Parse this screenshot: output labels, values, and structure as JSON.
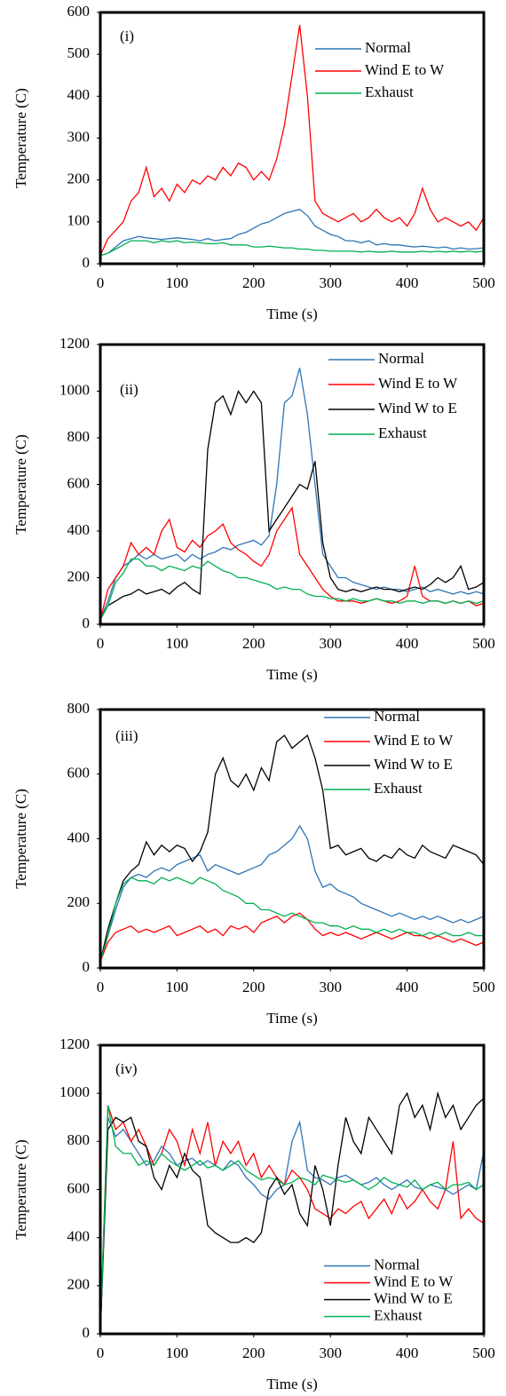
{
  "chart_data": [
    {
      "type": "line",
      "label": "(i)",
      "ylabel": "Temperature (C)",
      "xlabel": "Time (s)",
      "legend": "upper right",
      "xlim": [
        0,
        500
      ],
      "xticks": [
        0,
        100,
        200,
        300,
        400,
        500
      ],
      "ylim": [
        0,
        600
      ],
      "yticks": [
        0,
        100,
        200,
        300,
        400,
        500,
        600
      ],
      "x": [
        0,
        10,
        20,
        30,
        40,
        50,
        60,
        70,
        80,
        90,
        100,
        110,
        120,
        130,
        140,
        150,
        160,
        170,
        180,
        190,
        200,
        210,
        220,
        230,
        240,
        250,
        260,
        270,
        280,
        290,
        300,
        310,
        320,
        330,
        340,
        350,
        360,
        370,
        380,
        390,
        400,
        410,
        420,
        430,
        440,
        450,
        460,
        470,
        480,
        490,
        500
      ],
      "series": [
        {
          "name": "Normal",
          "color": "#2e75b6",
          "values": [
            20,
            25,
            40,
            55,
            60,
            65,
            62,
            60,
            58,
            60,
            62,
            60,
            58,
            55,
            60,
            55,
            58,
            60,
            70,
            75,
            85,
            95,
            100,
            110,
            120,
            125,
            130,
            115,
            90,
            80,
            70,
            65,
            55,
            55,
            50,
            55,
            45,
            48,
            45,
            45,
            42,
            40,
            42,
            40,
            38,
            40,
            35,
            38,
            35,
            36,
            38
          ]
        },
        {
          "name": "Wind E to W",
          "color": "#ff0000",
          "values": [
            20,
            60,
            80,
            100,
            150,
            170,
            230,
            160,
            180,
            150,
            190,
            170,
            200,
            190,
            210,
            200,
            230,
            210,
            240,
            230,
            200,
            220,
            200,
            250,
            330,
            450,
            570,
            400,
            150,
            120,
            110,
            100,
            110,
            120,
            100,
            110,
            130,
            110,
            100,
            110,
            90,
            120,
            180,
            130,
            100,
            110,
            100,
            90,
            100,
            80,
            110
          ]
        },
        {
          "name": "Exhaust",
          "color": "#00b050",
          "values": [
            20,
            25,
            35,
            45,
            55,
            55,
            55,
            50,
            55,
            52,
            55,
            50,
            52,
            50,
            48,
            48,
            50,
            45,
            45,
            45,
            40,
            40,
            42,
            40,
            38,
            38,
            35,
            35,
            32,
            32,
            30,
            30,
            30,
            30,
            28,
            30,
            28,
            28,
            30,
            28,
            28,
            28,
            30,
            28,
            30,
            28,
            30,
            28,
            30,
            28,
            30
          ]
        }
      ]
    },
    {
      "type": "line",
      "label": "(ii)",
      "ylabel": "Temperature (C)",
      "xlabel": "Time (s)",
      "legend": "upper right",
      "xlim": [
        0,
        500
      ],
      "xticks": [
        0,
        100,
        200,
        300,
        400,
        500
      ],
      "ylim": [
        0,
        1200
      ],
      "yticks": [
        0,
        200,
        400,
        600,
        800,
        1000,
        1200
      ],
      "x": [
        0,
        10,
        20,
        30,
        40,
        50,
        60,
        70,
        80,
        90,
        100,
        110,
        120,
        130,
        140,
        150,
        160,
        170,
        180,
        190,
        200,
        210,
        220,
        230,
        240,
        250,
        260,
        270,
        280,
        290,
        300,
        310,
        320,
        330,
        340,
        350,
        360,
        370,
        380,
        390,
        400,
        410,
        420,
        430,
        440,
        450,
        460,
        470,
        480,
        490,
        500
      ],
      "series": [
        {
          "name": "Normal",
          "color": "#2e75b6",
          "values": [
            20,
            100,
            200,
            250,
            270,
            300,
            280,
            300,
            280,
            290,
            300,
            270,
            300,
            280,
            300,
            310,
            330,
            320,
            340,
            350,
            360,
            340,
            380,
            600,
            950,
            980,
            1100,
            900,
            600,
            300,
            250,
            200,
            200,
            180,
            170,
            160,
            150,
            160,
            150,
            150,
            140,
            150,
            160,
            140,
            150,
            140,
            130,
            140,
            130,
            140,
            130
          ]
        },
        {
          "name": "Wind E to W",
          "color": "#ff0000",
          "values": [
            20,
            150,
            200,
            250,
            350,
            300,
            330,
            300,
            400,
            450,
            330,
            310,
            360,
            330,
            380,
            400,
            430,
            350,
            320,
            300,
            270,
            250,
            300,
            400,
            450,
            500,
            300,
            250,
            200,
            150,
            120,
            100,
            100,
            100,
            90,
            100,
            110,
            100,
            90,
            100,
            120,
            250,
            120,
            100,
            100,
            90,
            100,
            90,
            100,
            80,
            90
          ]
        },
        {
          "name": "Wind W to E",
          "color": "#000000",
          "values": [
            20,
            80,
            100,
            120,
            130,
            150,
            130,
            140,
            150,
            130,
            160,
            180,
            150,
            130,
            750,
            950,
            980,
            900,
            1000,
            950,
            1000,
            950,
            400,
            450,
            500,
            550,
            600,
            580,
            700,
            350,
            200,
            150,
            140,
            150,
            140,
            150,
            160,
            150,
            150,
            140,
            150,
            160,
            150,
            170,
            200,
            180,
            200,
            250,
            150,
            160,
            180
          ]
        },
        {
          "name": "Exhaust",
          "color": "#00b050",
          "values": [
            20,
            80,
            180,
            220,
            280,
            280,
            250,
            250,
            230,
            250,
            240,
            230,
            250,
            240,
            270,
            250,
            230,
            220,
            200,
            200,
            190,
            180,
            170,
            150,
            160,
            150,
            150,
            130,
            120,
            120,
            110,
            110,
            100,
            110,
            100,
            100,
            110,
            100,
            100,
            90,
            100,
            100,
            90,
            100,
            100,
            90,
            100,
            90,
            100,
            90,
            100
          ]
        }
      ]
    },
    {
      "type": "line",
      "label": "(iii)",
      "ylabel": "Temperature (C)",
      "xlabel": "Time (s)",
      "legend": "upper right",
      "xlim": [
        0,
        500
      ],
      "xticks": [
        0,
        100,
        200,
        300,
        400,
        500
      ],
      "ylim": [
        0,
        800
      ],
      "yticks": [
        0,
        200,
        400,
        600,
        800
      ],
      "x": [
        0,
        10,
        20,
        30,
        40,
        50,
        60,
        70,
        80,
        90,
        100,
        110,
        120,
        130,
        140,
        150,
        160,
        170,
        180,
        190,
        200,
        210,
        220,
        230,
        240,
        250,
        260,
        270,
        280,
        290,
        300,
        310,
        320,
        330,
        340,
        350,
        360,
        370,
        380,
        390,
        400,
        410,
        420,
        430,
        440,
        450,
        460,
        470,
        480,
        490,
        500
      ],
      "series": [
        {
          "name": "Normal",
          "color": "#2e75b6",
          "values": [
            20,
            100,
            180,
            250,
            280,
            290,
            280,
            300,
            310,
            300,
            320,
            330,
            340,
            350,
            300,
            320,
            310,
            300,
            290,
            300,
            310,
            320,
            350,
            360,
            380,
            400,
            440,
            400,
            300,
            250,
            260,
            240,
            230,
            220,
            200,
            190,
            180,
            170,
            160,
            170,
            160,
            150,
            160,
            150,
            160,
            150,
            140,
            150,
            140,
            150,
            160
          ]
        },
        {
          "name": "Wind E to W",
          "color": "#ff0000",
          "values": [
            20,
            80,
            110,
            120,
            130,
            110,
            120,
            110,
            120,
            130,
            100,
            110,
            120,
            130,
            110,
            120,
            100,
            130,
            120,
            130,
            110,
            140,
            150,
            160,
            140,
            160,
            170,
            150,
            120,
            100,
            110,
            100,
            110,
            100,
            90,
            100,
            110,
            100,
            90,
            100,
            110,
            100,
            100,
            90,
            100,
            90,
            80,
            90,
            80,
            70,
            80
          ]
        },
        {
          "name": "Wind W to E",
          "color": "#000000",
          "values": [
            20,
            120,
            200,
            270,
            300,
            320,
            390,
            350,
            380,
            360,
            380,
            370,
            330,
            360,
            420,
            600,
            650,
            580,
            560,
            600,
            550,
            620,
            580,
            700,
            720,
            680,
            700,
            720,
            650,
            550,
            370,
            380,
            350,
            360,
            370,
            340,
            330,
            350,
            340,
            370,
            350,
            340,
            380,
            360,
            350,
            340,
            380,
            370,
            360,
            350,
            320
          ]
        },
        {
          "name": "Exhaust",
          "color": "#00b050",
          "values": [
            20,
            100,
            200,
            260,
            280,
            270,
            270,
            260,
            280,
            270,
            280,
            270,
            260,
            280,
            270,
            260,
            240,
            230,
            220,
            200,
            200,
            180,
            180,
            170,
            160,
            170,
            160,
            150,
            140,
            140,
            130,
            130,
            120,
            130,
            120,
            120,
            110,
            120,
            110,
            120,
            110,
            110,
            100,
            110,
            100,
            110,
            100,
            100,
            110,
            100,
            100
          ]
        }
      ]
    },
    {
      "type": "line",
      "label": "(iv)",
      "ylabel": "Temperature (C)",
      "xlabel": "Time (s)",
      "legend": "lower right",
      "xlim": [
        0,
        500
      ],
      "xticks": [
        0,
        100,
        200,
        300,
        400,
        500
      ],
      "ylim": [
        0,
        1200
      ],
      "yticks": [
        0,
        200,
        400,
        600,
        800,
        1000,
        1200
      ],
      "x": [
        0,
        10,
        20,
        30,
        40,
        50,
        60,
        70,
        80,
        90,
        100,
        110,
        120,
        130,
        140,
        150,
        160,
        170,
        180,
        190,
        200,
        210,
        220,
        230,
        240,
        250,
        260,
        270,
        280,
        290,
        300,
        310,
        320,
        330,
        340,
        350,
        360,
        370,
        380,
        390,
        400,
        410,
        420,
        430,
        440,
        450,
        460,
        470,
        480,
        490,
        500
      ],
      "series": [
        {
          "name": "Normal",
          "color": "#2e75b6",
          "values": [
            0,
            900,
            820,
            850,
            800,
            750,
            700,
            720,
            780,
            750,
            700,
            720,
            730,
            700,
            720,
            700,
            680,
            720,
            700,
            650,
            620,
            580,
            560,
            600,
            620,
            800,
            880,
            680,
            650,
            640,
            620,
            650,
            660,
            640,
            620,
            630,
            650,
            620,
            600,
            620,
            640,
            610,
            600,
            620,
            610,
            600,
            580,
            600,
            620,
            600,
            760
          ]
        },
        {
          "name": "Wind E to W",
          "color": "#ff0000",
          "values": [
            0,
            950,
            850,
            880,
            800,
            850,
            780,
            700,
            750,
            850,
            800,
            700,
            850,
            750,
            880,
            700,
            800,
            750,
            800,
            700,
            750,
            650,
            700,
            650,
            620,
            680,
            650,
            600,
            520,
            500,
            480,
            520,
            500,
            530,
            550,
            480,
            520,
            560,
            500,
            580,
            520,
            550,
            600,
            550,
            520,
            600,
            800,
            480,
            520,
            480,
            460
          ]
        },
        {
          "name": "Wind W to E",
          "color": "#000000",
          "values": [
            0,
            850,
            900,
            880,
            900,
            800,
            780,
            650,
            600,
            700,
            650,
            750,
            680,
            650,
            450,
            420,
            400,
            380,
            380,
            400,
            380,
            420,
            600,
            650,
            580,
            620,
            500,
            450,
            700,
            600,
            450,
            700,
            900,
            800,
            750,
            900,
            850,
            800,
            750,
            950,
            1000,
            900,
            950,
            850,
            1000,
            900,
            950,
            850,
            900,
            950,
            980
          ]
        },
        {
          "name": "Exhaust",
          "color": "#00b050",
          "values": [
            0,
            950,
            780,
            750,
            750,
            700,
            720,
            700,
            750,
            720,
            700,
            680,
            700,
            720,
            690,
            700,
            680,
            700,
            720,
            680,
            660,
            640,
            650,
            640,
            620,
            630,
            650,
            640,
            620,
            660,
            650,
            640,
            630,
            640,
            620,
            600,
            620,
            650,
            630,
            620,
            610,
            640,
            600,
            620,
            630,
            600,
            620,
            620,
            630,
            600,
            620
          ]
        }
      ]
    }
  ]
}
